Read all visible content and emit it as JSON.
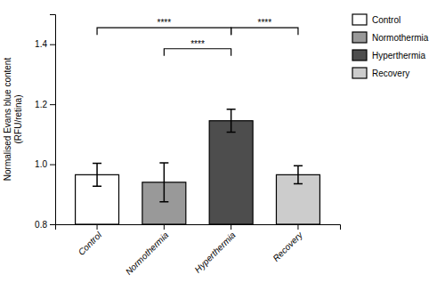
{
  "chart_data": {
    "type": "bar",
    "categories": [
      "Control",
      "Normothermia",
      "Hyperthermia",
      "Recovery"
    ],
    "values": [
      0.965,
      0.94,
      1.145,
      0.965
    ],
    "errors": [
      0.038,
      0.065,
      0.038,
      0.03
    ],
    "colors": [
      "#ffffff",
      "#999999",
      "#4d4d4d",
      "#cccccc"
    ],
    "y_label": "Normalised Evans blue content\n(RFU/retina)",
    "ylim": [
      0.8,
      1.5
    ],
    "yticks": [
      0.8,
      {
        "value": 1.0,
        "label": "1.0"
      },
      1.2,
      1.4
    ],
    "grid": false,
    "legend": "right",
    "annotations": [
      {
        "text": "****",
        "x1": "Control",
        "x2": "Hyperthermia",
        "y": 1.455
      },
      {
        "text": "****",
        "x1": "Normothermia",
        "x2": "Hyperthermia",
        "y": 1.385
      },
      {
        "text": "****",
        "x1": "Hyperthermia",
        "x2": "Recovery",
        "y": 1.455
      }
    ]
  }
}
